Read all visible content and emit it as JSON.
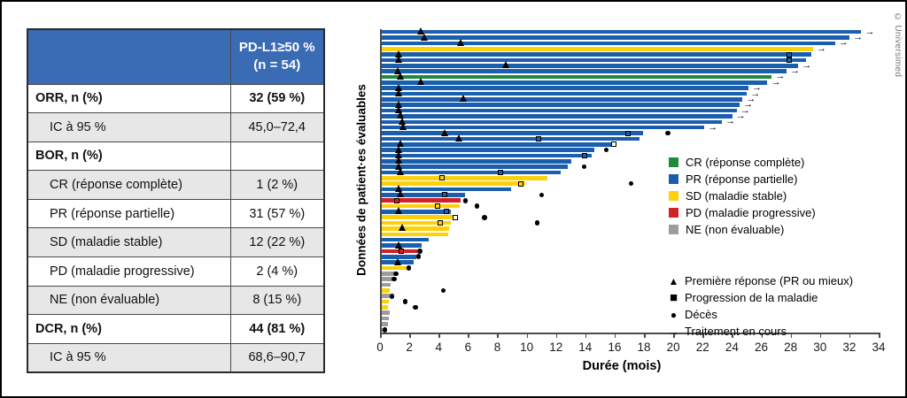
{
  "table": {
    "header": {
      "col1": "",
      "col2_line1": "PD-L1≥50 %",
      "col2_line2": "(n = 54)",
      "header_bg": "#3a6cb5"
    },
    "rows": [
      {
        "label": "ORR, n (%)",
        "value": "32 (59 %)",
        "bold": true,
        "indent": false
      },
      {
        "label": "IC à 95 %",
        "value": "45,0–72,4",
        "bold": false,
        "indent": true
      },
      {
        "label": "BOR, n (%)",
        "value": "",
        "bold": true,
        "indent": false
      },
      {
        "label": "CR (réponse complète)",
        "value": "1 (2 %)",
        "bold": false,
        "indent": true
      },
      {
        "label": "PR (réponse partielle)",
        "value": "31 (57 %)",
        "bold": false,
        "indent": true
      },
      {
        "label": "SD (maladie stable)",
        "value": "12 (22 %)",
        "bold": false,
        "indent": true
      },
      {
        "label": "PD (maladie progressive)",
        "value": "2 (4 %)",
        "bold": false,
        "indent": true
      },
      {
        "label": "NE (non évaluable)",
        "value": "8 (15 %)",
        "bold": false,
        "indent": true
      },
      {
        "label": "DCR, n (%)",
        "value": "44 (81 %)",
        "bold": true,
        "indent": false
      },
      {
        "label": "IC à 95 %",
        "value": "68,6–90,7",
        "bold": false,
        "indent": true
      }
    ]
  },
  "chart_data": {
    "type": "bar",
    "orientation": "horizontal-swimmer",
    "title": "",
    "xlabel": "Durée (mois)",
    "ylabel": "Données de patient·es évaluables",
    "xlim": [
      0,
      34
    ],
    "xticks": [
      0,
      2,
      4,
      6,
      8,
      10,
      12,
      14,
      16,
      18,
      20,
      22,
      24,
      26,
      28,
      30,
      32,
      34
    ],
    "grid": false,
    "colors": {
      "CR": "#1e8b3d",
      "PR": "#1a5fad",
      "SD": "#fdd10a",
      "PD": "#cf2128",
      "NE": "#9d9d9d"
    },
    "legend_status": [
      {
        "key": "CR",
        "label": "CR (réponse complète)"
      },
      {
        "key": "PR",
        "label": "PR (réponse partielle)"
      },
      {
        "key": "SD",
        "label": "SD (maladie stable)"
      },
      {
        "key": "PD",
        "label": "PD (maladie progressive)"
      },
      {
        "key": "NE",
        "label": "NE (non évaluable)"
      }
    ],
    "legend_markers": [
      {
        "symbol": "▲",
        "label": "Première réponse (PR ou mieux)"
      },
      {
        "symbol": "■",
        "label": "Progression de la maladie"
      },
      {
        "symbol": "●",
        "label": "Décès"
      },
      {
        "symbol": "→",
        "label": "Traitement en cours"
      }
    ],
    "patients": [
      {
        "c": "PR",
        "len": 32.7,
        "tri": 2.7,
        "arrow": true
      },
      {
        "c": "PR",
        "len": 31.9,
        "tri": 2.9,
        "arrow": true
      },
      {
        "c": "PR",
        "len": 30.9,
        "tri": 5.4,
        "arrow": true
      },
      {
        "c": "SD",
        "len": 29.4,
        "arrow": true
      },
      {
        "c": "PR",
        "len": 29.3,
        "tri": 1.2,
        "sq": 27.8
      },
      {
        "c": "PR",
        "len": 28.9,
        "tri": 1.2,
        "sq": 27.8
      },
      {
        "c": "PR",
        "len": 28.4,
        "tri": 8.5,
        "arrow": true
      },
      {
        "c": "PR",
        "len": 27.6,
        "tri": 1.1,
        "arrow": true
      },
      {
        "c": "CR",
        "len": 26.6,
        "tri": 1.3,
        "arrow": true
      },
      {
        "c": "PR",
        "len": 26.3,
        "tri": 2.7,
        "arrow": true
      },
      {
        "c": "PR",
        "len": 25.0,
        "tri": 1.2,
        "arrow": true
      },
      {
        "c": "PR",
        "len": 24.9,
        "tri": 1.2,
        "arrow": true
      },
      {
        "c": "PR",
        "len": 24.6,
        "tri": 5.6,
        "arrow": true
      },
      {
        "c": "PR",
        "len": 24.4,
        "tri": 1.2,
        "arrow": true
      },
      {
        "c": "PR",
        "len": 24.2,
        "tri": 1.2,
        "arrow": true
      },
      {
        "c": "PR",
        "len": 23.9,
        "tri": 1.3,
        "arrow": true
      },
      {
        "c": "PR",
        "len": 23.2,
        "tri": 1.4,
        "arrow": true
      },
      {
        "c": "PR",
        "len": 22.0,
        "tri": 1.5,
        "arrow": true
      },
      {
        "c": "PR",
        "len": 17.8,
        "tri": 4.3,
        "sq": 16.8,
        "death": 19.5
      },
      {
        "c": "PR",
        "len": 17.6,
        "tri": 5.3,
        "sq": 10.7
      },
      {
        "c": "PR",
        "len": 16.0,
        "tri": 1.3,
        "sq": 15.8,
        "sqWhite": true
      },
      {
        "c": "PR",
        "len": 14.5,
        "tri": 1.2,
        "death": 15.3
      },
      {
        "c": "PR",
        "len": 14.3,
        "tri": 1.2,
        "sq": 13.8
      },
      {
        "c": "PR",
        "len": 12.9,
        "tri": 1.2
      },
      {
        "c": "PR",
        "len": 12.7,
        "tri": 1.2,
        "death": 13.8
      },
      {
        "c": "PR",
        "len": 12.2,
        "tri": 1.3,
        "sq": 8.1
      },
      {
        "c": "SD",
        "len": 11.3,
        "sq": 4.1
      },
      {
        "c": "SD",
        "len": 9.8,
        "sq": 9.5,
        "death": 17.0
      },
      {
        "c": "PR",
        "len": 8.8,
        "tri": 1.2
      },
      {
        "c": "PR",
        "len": 5.7,
        "tri": 1.3,
        "sq": 4.3,
        "death": 10.9
      },
      {
        "c": "PD",
        "len": 5.4,
        "sq": 1.0,
        "death": 5.7
      },
      {
        "c": "SD",
        "len": 5.3,
        "sq": 3.8,
        "death": 6.5
      },
      {
        "c": "PR",
        "len": 4.7,
        "tri": 1.2,
        "sq": 4.4
      },
      {
        "c": "SD",
        "len": 5.1,
        "sq": 5.0,
        "sqWhite": true,
        "death": 7.0
      },
      {
        "c": "SD",
        "len": 4.7,
        "sq": 4.0,
        "death": 10.6
      },
      {
        "c": "SD",
        "len": 4.6,
        "tri": 1.4
      },
      {
        "c": "SD",
        "len": 4.5
      },
      {
        "c": "PR",
        "len": 3.2
      },
      {
        "c": "PR",
        "len": 2.7,
        "tri": 1.2
      },
      {
        "c": "PD",
        "len": 2.4,
        "sq": 1.3,
        "death": 2.6
      },
      {
        "c": "PR",
        "len": 2.35,
        "death": 2.5
      },
      {
        "c": "PR",
        "len": 2.2,
        "tri": 1.1
      },
      {
        "c": "SD",
        "len": 1.75,
        "death": 1.85
      },
      {
        "c": "NE",
        "len": 0.85,
        "death": 0.95
      },
      {
        "c": "NE",
        "len": 0.75,
        "death": 0.85
      },
      {
        "c": "NE",
        "len": 0.6
      },
      {
        "c": "SD",
        "len": 0.55,
        "death": 4.2
      },
      {
        "c": "NE",
        "len": 0.55,
        "death": 0.7
      },
      {
        "c": "SD",
        "len": 0.5,
        "death": 1.6
      },
      {
        "c": "SD",
        "len": 0.45,
        "death": 2.3
      },
      {
        "c": "NE",
        "len": 0.55
      },
      {
        "c": "NE",
        "len": 0.5
      },
      {
        "c": "NE",
        "len": 0.45
      },
      {
        "c": "NE",
        "len": 0.1,
        "death": 0.2
      }
    ]
  },
  "copyright": "© Universimed"
}
